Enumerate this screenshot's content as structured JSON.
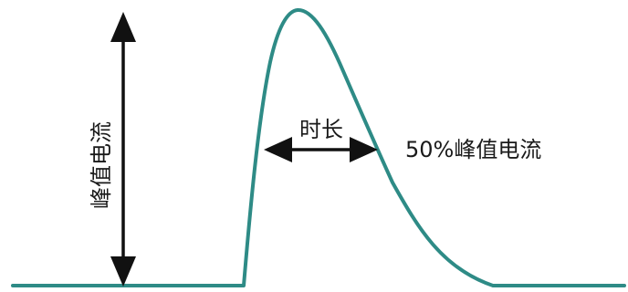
{
  "diagram": {
    "labels": {
      "peak_current": "峰值电流",
      "duration": "时长",
      "half_peak_current": "50%峰值电流"
    },
    "colors": {
      "curve": "#2e8b86",
      "arrows": "#111111",
      "text": "#1a1a1a",
      "background": "#ffffff"
    }
  }
}
